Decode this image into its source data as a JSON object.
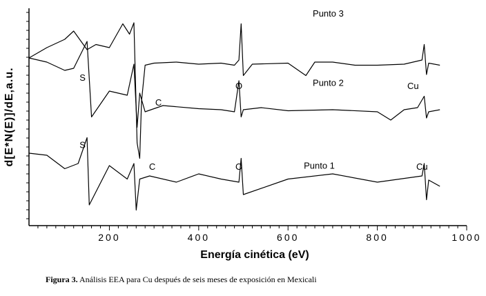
{
  "caption": {
    "label": "Figura 3.",
    "text": "Análisis EEA para Cu después de seis meses de exposición en Mexicali"
  },
  "chart_data": {
    "type": "line",
    "xlabel": "Energía cinética (eV)",
    "ylabel": "d[E*N(E)]/dE,a.u.",
    "xlim": [
      20,
      1000
    ],
    "xticks": [
      "200",
      "400",
      "600",
      "800",
      "1000"
    ],
    "grid": false,
    "series": [
      {
        "name": "Punto 3",
        "x": [
          20,
          60,
          100,
          120,
          150,
          170,
          200,
          230,
          245,
          255,
          262,
          268,
          272,
          280,
          300,
          350,
          400,
          450,
          480,
          490,
          495,
          500,
          520,
          600,
          640,
          660,
          700,
          750,
          800,
          860,
          900,
          905,
          910,
          915,
          940
        ],
        "y": [
          0.62,
          0.72,
          0.8,
          0.88,
          0.7,
          0.75,
          0.72,
          0.95,
          0.85,
          0.96,
          -0.2,
          -0.35,
          0.2,
          0.55,
          0.57,
          0.58,
          0.56,
          0.57,
          0.55,
          0.6,
          0.95,
          0.45,
          0.56,
          0.57,
          0.45,
          0.58,
          0.58,
          0.55,
          0.55,
          0.56,
          0.6,
          0.75,
          0.46,
          0.57,
          0.55
        ]
      },
      {
        "name": "Punto 2",
        "x": [
          20,
          60,
          100,
          120,
          150,
          160,
          200,
          240,
          255,
          262,
          268,
          280,
          320,
          400,
          450,
          480,
          490,
          495,
          500,
          540,
          600,
          700,
          800,
          830,
          860,
          890,
          905,
          910,
          915,
          940
        ],
        "y": [
          0.62,
          0.58,
          0.5,
          0.52,
          0.78,
          0.05,
          0.3,
          0.26,
          0.56,
          -0.05,
          0.28,
          0.1,
          0.16,
          0.13,
          0.12,
          0.1,
          0.4,
          0.05,
          0.12,
          0.14,
          0.11,
          0.12,
          0.1,
          0.02,
          0.12,
          0.14,
          0.25,
          0.04,
          0.1,
          0.12
        ]
      },
      {
        "name": "Punto 1",
        "x": [
          20,
          60,
          100,
          130,
          150,
          155,
          200,
          240,
          255,
          260,
          268,
          290,
          350,
          400,
          450,
          490,
          495,
          500,
          600,
          700,
          800,
          900,
          905,
          910,
          915,
          940
        ],
        "y": [
          -0.3,
          -0.32,
          -0.45,
          -0.4,
          -0.15,
          -0.8,
          -0.42,
          -0.55,
          -0.4,
          -0.85,
          -0.55,
          -0.52,
          -0.58,
          -0.5,
          -0.55,
          -0.58,
          -0.35,
          -0.7,
          -0.55,
          -0.5,
          -0.58,
          -0.52,
          -0.4,
          -0.75,
          -0.56,
          -0.62
        ]
      }
    ],
    "annotations": [
      {
        "text": "Punto 3",
        "x": 690,
        "y": 1.02
      },
      {
        "text": "S",
        "x": 140,
        "y": 0.4
      },
      {
        "text": "O",
        "x": 490,
        "y": 0.32
      },
      {
        "text": "Cu",
        "x": 880,
        "y": 0.32
      },
      {
        "text": "C",
        "x": 310,
        "y": 0.16
      },
      {
        "text": "Punto 2",
        "x": 690,
        "y": 0.35
      },
      {
        "text": "S",
        "x": 140,
        "y": -0.25
      },
      {
        "text": "C",
        "x": 296,
        "y": -0.46
      },
      {
        "text": "O",
        "x": 490,
        "y": -0.46
      },
      {
        "text": "Punto 1",
        "x": 670,
        "y": -0.45
      },
      {
        "text": "Cu",
        "x": 900,
        "y": -0.46
      }
    ],
    "ylim": [
      -1.0,
      1.1
    ]
  }
}
